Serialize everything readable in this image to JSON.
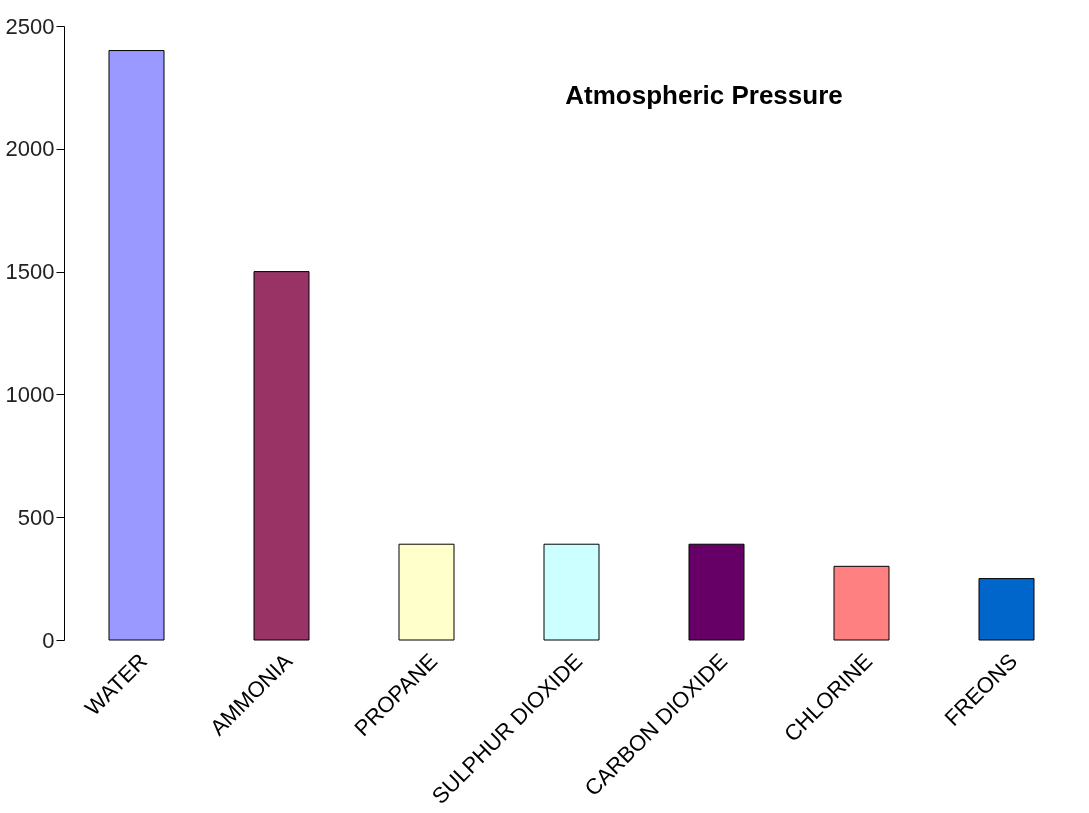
{
  "chart_data": {
    "type": "bar",
    "title": "Atmospheric Pressure",
    "categories": [
      "WATER",
      "AMMONIA",
      "PROPANE",
      "SULPHUR DIOXIDE",
      "CARBON DIOXIDE",
      "CHLORINE",
      "FREONS"
    ],
    "values": [
      2400,
      1500,
      390,
      390,
      390,
      300,
      250
    ],
    "colors": [
      "#9999ff",
      "#993366",
      "#ffffcc",
      "#ccffff",
      "#660066",
      "#ff8080",
      "#0066cc"
    ],
    "ylim": [
      0,
      2500
    ],
    "yticks": [
      0,
      500,
      1000,
      1500,
      2000,
      2500
    ],
    "grid": false
  }
}
